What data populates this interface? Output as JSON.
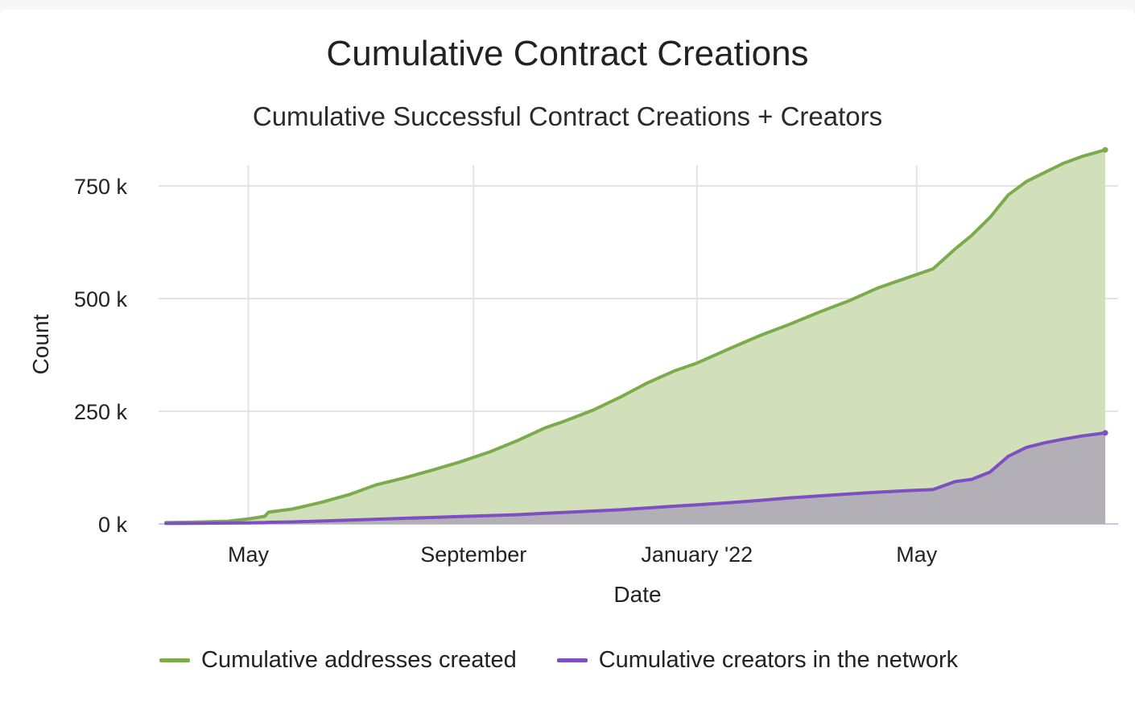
{
  "colors": {
    "series_addresses": "#7cab4c",
    "series_addresses_fill": "#d1e0bb",
    "series_creators": "#7e4fc2",
    "series_creators_fill": "#b2b0b6",
    "grid": "#e3e3e3",
    "baseline": "#c8c6e6"
  },
  "chart_data": {
    "type": "area",
    "title": "Cumulative Contract Creations",
    "subtitle": "Cumulative Successful Contract Creations + Creators",
    "xlabel": "Date",
    "ylabel": "Count",
    "x_ticks": [
      "2021-05-01",
      "2021-09-01",
      "2022-01-01",
      "2022-05-01"
    ],
    "x_tick_labels": [
      "May",
      "September",
      "January '22",
      "May"
    ],
    "y_ticks": [
      0,
      250000,
      500000,
      750000
    ],
    "y_tick_labels": [
      "0 k",
      "250 k",
      "500 k",
      "750 k"
    ],
    "xlim": [
      "2021-03-13",
      "2022-08-19"
    ],
    "ylim": [
      0,
      780000
    ],
    "grid": true,
    "legend_position": "bottom",
    "x": [
      "2021-03-17",
      "2021-04-01",
      "2021-04-20",
      "2021-05-01",
      "2021-05-10",
      "2021-05-12",
      "2021-05-25",
      "2021-06-10",
      "2021-06-25",
      "2021-07-10",
      "2021-07-25",
      "2021-08-10",
      "2021-08-25",
      "2021-09-10",
      "2021-09-25",
      "2021-10-10",
      "2021-10-20",
      "2021-11-05",
      "2021-11-20",
      "2021-12-05",
      "2021-12-20",
      "2022-01-01",
      "2022-01-20",
      "2022-02-05",
      "2022-02-20",
      "2022-03-10",
      "2022-03-25",
      "2022-04-10",
      "2022-04-25",
      "2022-05-10",
      "2022-05-22",
      "2022-05-31",
      "2022-06-10",
      "2022-06-20",
      "2022-06-30",
      "2022-07-10",
      "2022-07-20",
      "2022-07-30",
      "2022-08-12"
    ],
    "series": [
      {
        "name": "Cumulative addresses created",
        "values": [
          3000,
          4000,
          6000,
          11000,
          17000,
          26000,
          33000,
          48000,
          65000,
          87000,
          102000,
          120000,
          138000,
          160000,
          185000,
          213000,
          227000,
          252000,
          281000,
          313000,
          340000,
          357000,
          391000,
          419000,
          442000,
          472000,
          495000,
          524000,
          545000,
          566000,
          610000,
          640000,
          680000,
          730000,
          760000,
          780000,
          800000,
          815000,
          830000
        ]
      },
      {
        "name": "Cumulative creators in the network",
        "values": [
          1000,
          1500,
          2000,
          2500,
          3000,
          3500,
          4500,
          6500,
          8500,
          10500,
          12500,
          14500,
          16500,
          18500,
          20500,
          23500,
          25500,
          28500,
          31500,
          35500,
          39500,
          42500,
          47500,
          52500,
          57500,
          62500,
          66500,
          70500,
          73500,
          76500,
          94000,
          99000,
          115000,
          150000,
          170000,
          180000,
          188000,
          195000,
          202000
        ]
      }
    ]
  }
}
